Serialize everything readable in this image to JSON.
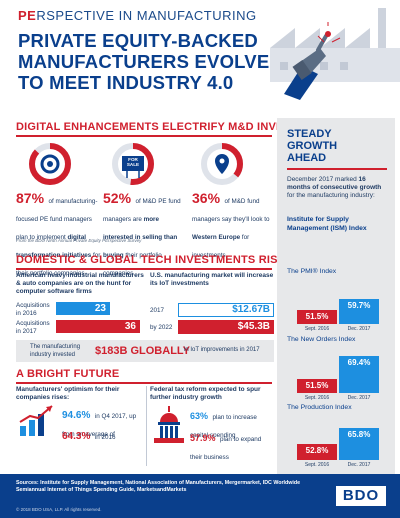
{
  "header": {
    "kicker_bold": "PE",
    "kicker_rest": "RSPECTIVE IN MANUFACTURING",
    "title_lines": [
      "PRIVATE EQUITY-BACKED",
      "MANUFACTURERS EVOLVE",
      "TO MEET INDUSTRY 4.0"
    ]
  },
  "section1": {
    "title": "DIGITAL ENHANCEMENTS ELECTRIFY M&D INVESTORS",
    "stat1": {
      "value": "87%",
      "text_pre": "of manufacturing-focused PE fund managers plan to implement ",
      "text_bold": "digital transformation initiatives",
      "text_post": " for their portfolio companies"
    },
    "stat2": {
      "value": "52%",
      "text_pre": "of M&D PE fund managers are ",
      "text_bold": "more interested in selling than buying",
      "text_post": " their portfolio companies"
    },
    "stat3": {
      "value": "36%",
      "text_pre": "of M&D fund managers say they'll look to ",
      "text_bold": "Western Europe",
      "text_post": " for investments"
    },
    "sale_label": "FOR SALE",
    "source": "From the BDO Ninth Annual Private Equity PErspective Survey"
  },
  "section2": {
    "title": "DOMESTIC & GLOBAL TECH INVESTMENTS RISE",
    "left_head": "American heavy industrial manufacturers & auto companies are on the hunt for computer software firms",
    "acq2016_label": "Acquisitions in 2016",
    "acq2016_value": "23",
    "acq2017_label": "Acquisitions in 2017",
    "acq2017_value": "36",
    "right_head": "U.S. manufacturing market will increase its IoT investments",
    "y2017_label": "2017",
    "y2017_value": "$12.67B",
    "y2022_label": "by 2022",
    "y2022_value": "$45.3B",
    "banner_left": "The manufacturing industry invested",
    "banner_value": "$183B GLOBALLY",
    "banner_right": "in IoT improvements in 2017"
  },
  "section3": {
    "title": "A BRIGHT FUTURE",
    "left_head": "Manufacturers' optimism for their companies rises:",
    "opt_q4": "94.6%",
    "opt_q4_text": "in Q4 2017, up from an average of",
    "opt_2016": "64.3%",
    "opt_2016_text": "in 2016",
    "right_head": "Federal tax reform expected to spur further industry growth",
    "tax1": "63%",
    "tax1_text": "plan to increase capital spending",
    "tax2": "57.9%",
    "tax2_text": "plan to expand their business"
  },
  "sidebar": {
    "title_lines": [
      "STEADY",
      "GROWTH",
      "AHEAD"
    ],
    "intro_pre": "December 2017 marked ",
    "intro_bold": "16 months of consecutive growth",
    "intro_post": " for the manufacturing industry:",
    "ism": "Institute for Supply Management (ISM) Index",
    "indexes": [
      {
        "name": "The PMI® Index",
        "a": "51.5%",
        "a_label": "Sept. 2016",
        "b": "59.7%",
        "b_label": "Dec. 2017",
        "av": 51.5,
        "bv": 59.7
      },
      {
        "name": "The New Orders Index",
        "a": "51.5%",
        "a_label": "Sept. 2016",
        "b": "69.4%",
        "b_label": "Dec. 2017",
        "av": 51.5,
        "bv": 69.4
      },
      {
        "name": "The Production Index",
        "a": "52.8%",
        "a_label": "Sept. 2016",
        "b": "65.8%",
        "b_label": "Dec. 2017",
        "av": 52.8,
        "bv": 65.8
      }
    ]
  },
  "footer": {
    "sources": "Sources: Institute for Supply Management, National Association of Manufacturers, Mergermarket, IDC Worldwide Semiannual Internet of Things Spending Guide, MarketsandMarkets",
    "copyright": "© 2018 BDO USA, LLP. All rights reserved.",
    "logo": "BDO"
  },
  "colors": {
    "red": "#d0202e",
    "navy": "#0a3f8c",
    "blue": "#1d8fe0",
    "gray": "#e7e8ea"
  }
}
